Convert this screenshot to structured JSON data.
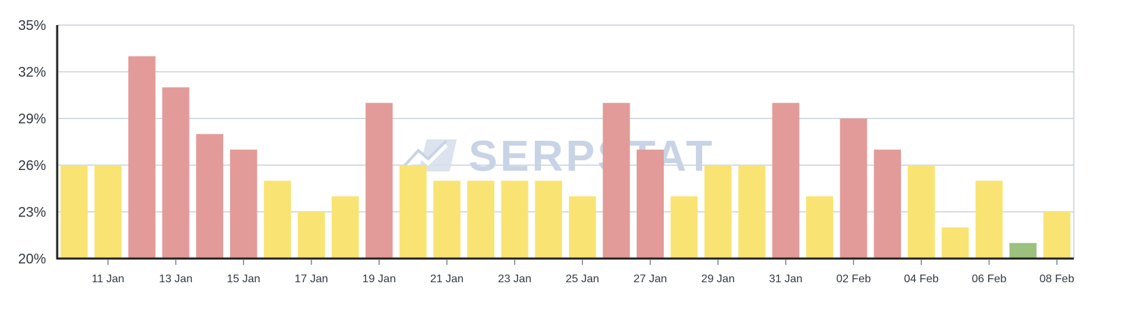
{
  "chart_data": {
    "type": "bar",
    "categories": [
      "10 Jan",
      "11 Jan",
      "12 Jan",
      "13 Jan",
      "14 Jan",
      "15 Jan",
      "16 Jan",
      "17 Jan",
      "18 Jan",
      "19 Jan",
      "20 Jan",
      "21 Jan",
      "22 Jan",
      "23 Jan",
      "24 Jan",
      "25 Jan",
      "26 Jan",
      "27 Jan",
      "28 Jan",
      "29 Jan",
      "30 Jan",
      "31 Jan",
      "01 Feb",
      "02 Feb",
      "03 Feb",
      "04 Feb",
      "05 Feb",
      "06 Feb",
      "07 Feb",
      "08 Feb"
    ],
    "x_tick_labels": [
      "11 Jan",
      "13 Jan",
      "15 Jan",
      "17 Jan",
      "19 Jan",
      "21 Jan",
      "23 Jan",
      "25 Jan",
      "27 Jan",
      "29 Jan",
      "31 Jan",
      "02 Feb",
      "04 Feb",
      "06 Feb",
      "08 Feb"
    ],
    "values": [
      26,
      26,
      33,
      31,
      28,
      27,
      25,
      23,
      24,
      30,
      26,
      25,
      25,
      25,
      25,
      24,
      30,
      27,
      24,
      26,
      26,
      30,
      24,
      29,
      27,
      26,
      22,
      25,
      21,
      23
    ],
    "bar_color_levels": [
      "medium",
      "medium",
      "high",
      "high",
      "high",
      "high",
      "medium",
      "medium",
      "medium",
      "high",
      "medium",
      "medium",
      "medium",
      "medium",
      "medium",
      "medium",
      "high",
      "high",
      "medium",
      "medium",
      "medium",
      "high",
      "medium",
      "high",
      "high",
      "medium",
      "medium",
      "medium",
      "low",
      "medium"
    ],
    "colors": {
      "high": "#e29b98",
      "medium": "#f9e473",
      "low": "#9cc07e",
      "grid": "#c9d0da",
      "axis": "#222222"
    },
    "y_ticks": [
      20,
      23,
      26,
      29,
      32,
      35
    ],
    "y_tick_labels": [
      "20%",
      "23%",
      "26%",
      "29%",
      "32%",
      "35%"
    ],
    "ylim": [
      20,
      35
    ],
    "grid": true,
    "watermark": "SERPSTAT"
  }
}
